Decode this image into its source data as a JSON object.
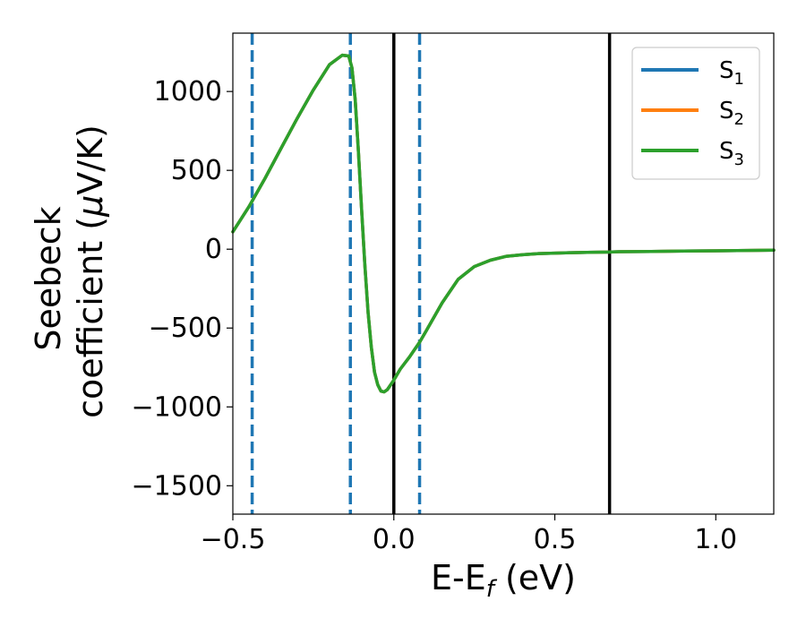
{
  "chart_data": {
    "type": "line",
    "xlabel": "E-E",
    "xlabel_sub": "f",
    "xlabel_unit": " (eV)",
    "ylabel_line1": "Seebeck",
    "ylabel_line2_prefix": "coefficient  (",
    "ylabel_mu": "μ",
    "ylabel_line2_suffix": "V/K)",
    "xlim": [
      -0.5,
      1.18
    ],
    "ylim": [
      -1680,
      1370
    ],
    "x_ticks": [
      -0.5,
      0.0,
      0.5,
      1.0
    ],
    "x_tick_labels": [
      "−0.5",
      "0.0",
      "0.5",
      "1.0"
    ],
    "y_ticks": [
      1000,
      500,
      0,
      -500,
      -1000,
      -1500
    ],
    "y_tick_labels": [
      "1000",
      "500",
      "0",
      "−500",
      "−1000",
      "−1500"
    ],
    "grid": false,
    "legend_position": "top-right",
    "series": [
      {
        "name": "S",
        "name_sub": "1",
        "color": "#1f77b4",
        "x": [
          -0.5,
          -0.45,
          -0.4,
          -0.35,
          -0.3,
          -0.25,
          -0.2,
          -0.16,
          -0.14,
          -0.13,
          -0.12,
          -0.11,
          -0.1,
          -0.09,
          -0.08,
          -0.07,
          -0.06,
          -0.05,
          -0.04,
          -0.03,
          -0.02,
          -0.01,
          0.0,
          0.02,
          0.05,
          0.08,
          0.1,
          0.15,
          0.2,
          0.25,
          0.3,
          0.35,
          0.4,
          0.45,
          0.5,
          0.55,
          0.6,
          0.67,
          0.7,
          0.8,
          0.9,
          1.0,
          1.1,
          1.18
        ],
        "values": [
          110,
          270,
          450,
          640,
          830,
          1010,
          1170,
          1230,
          1225,
          1150,
          950,
          620,
          250,
          -100,
          -400,
          -620,
          -780,
          -860,
          -900,
          -905,
          -890,
          -860,
          -830,
          -760,
          -680,
          -590,
          -520,
          -340,
          -190,
          -110,
          -70,
          -45,
          -35,
          -28,
          -25,
          -22,
          -20,
          -18,
          -16,
          -14,
          -12,
          -10,
          -8,
          -6
        ]
      },
      {
        "name": "S",
        "name_sub": "2",
        "color": "#ff7f0e",
        "x": [
          -0.5,
          -0.45,
          -0.4,
          -0.35,
          -0.3,
          -0.25,
          -0.2,
          -0.16,
          -0.14,
          -0.13,
          -0.12,
          -0.11,
          -0.1,
          -0.09,
          -0.08,
          -0.07,
          -0.06,
          -0.05,
          -0.04,
          -0.03,
          -0.02,
          -0.01,
          0.0,
          0.02,
          0.05,
          0.08,
          0.1,
          0.15,
          0.2,
          0.25,
          0.3,
          0.35,
          0.4,
          0.45,
          0.5,
          0.55,
          0.6,
          0.67,
          0.7,
          0.8,
          0.9,
          1.0,
          1.1,
          1.18
        ],
        "values": [
          110,
          270,
          450,
          640,
          830,
          1010,
          1170,
          1230,
          1225,
          1150,
          950,
          620,
          250,
          -100,
          -400,
          -620,
          -780,
          -860,
          -900,
          -905,
          -890,
          -860,
          -830,
          -760,
          -680,
          -590,
          -520,
          -340,
          -190,
          -110,
          -70,
          -45,
          -35,
          -28,
          -25,
          -22,
          -20,
          -18,
          -16,
          -14,
          -12,
          -10,
          -8,
          -6
        ]
      },
      {
        "name": "S",
        "name_sub": "3",
        "color": "#2ca02c",
        "x": [
          -0.5,
          -0.45,
          -0.4,
          -0.35,
          -0.3,
          -0.25,
          -0.2,
          -0.16,
          -0.14,
          -0.13,
          -0.12,
          -0.11,
          -0.1,
          -0.09,
          -0.08,
          -0.07,
          -0.06,
          -0.05,
          -0.04,
          -0.03,
          -0.02,
          -0.01,
          0.0,
          0.02,
          0.05,
          0.08,
          0.1,
          0.15,
          0.2,
          0.25,
          0.3,
          0.35,
          0.4,
          0.45,
          0.5,
          0.55,
          0.6,
          0.67,
          0.7,
          0.8,
          0.9,
          1.0,
          1.1,
          1.18
        ],
        "values": [
          110,
          270,
          450,
          640,
          830,
          1010,
          1170,
          1230,
          1225,
          1150,
          950,
          620,
          250,
          -100,
          -400,
          -620,
          -780,
          -860,
          -900,
          -905,
          -890,
          -860,
          -830,
          -760,
          -680,
          -590,
          -520,
          -340,
          -190,
          -110,
          -70,
          -45,
          -35,
          -28,
          -25,
          -22,
          -20,
          -18,
          -16,
          -14,
          -12,
          -10,
          -8,
          -6
        ]
      }
    ],
    "vertical_lines": [
      {
        "x": -0.44,
        "style": "dashed",
        "color": "#1f77b4"
      },
      {
        "x": -0.135,
        "style": "dashed",
        "color": "#1f77b4"
      },
      {
        "x": 0.08,
        "style": "dashed",
        "color": "#1f77b4"
      },
      {
        "x": 0.0,
        "style": "solid",
        "color": "#000000"
      },
      {
        "x": 0.67,
        "style": "solid",
        "color": "#000000"
      }
    ]
  }
}
